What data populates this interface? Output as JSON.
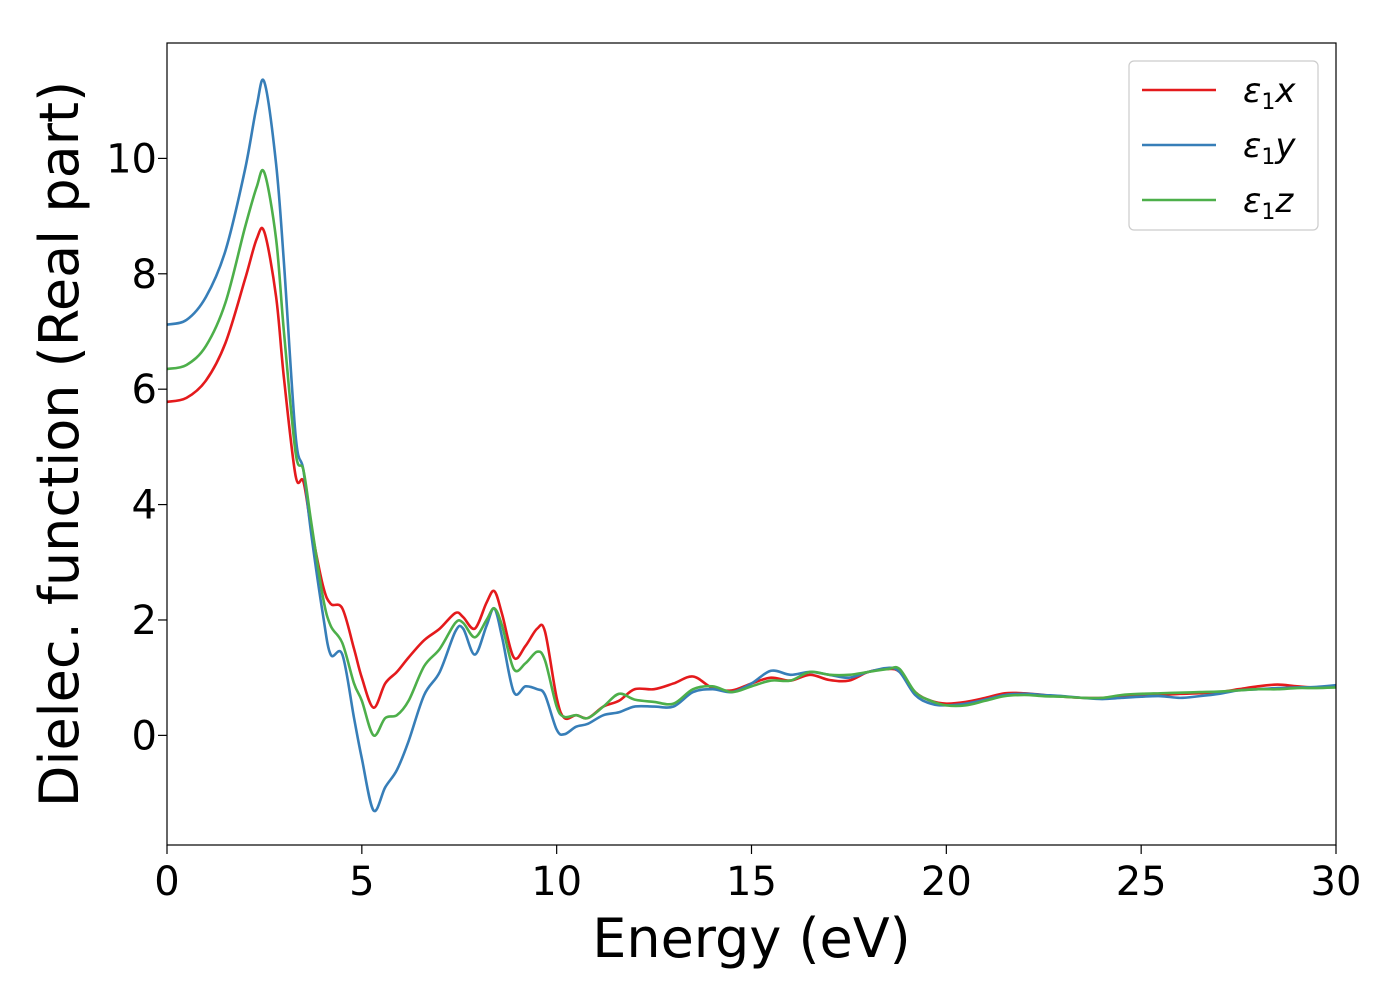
{
  "chart_data": {
    "type": "line",
    "title": "",
    "xlabel": "Energy (eV)",
    "ylabel": "Dielec. function (Real part)",
    "xlim": [
      0,
      30
    ],
    "ylim": [
      -1.9,
      12.0
    ],
    "xticks": [
      0,
      5,
      10,
      15,
      20,
      25,
      30
    ],
    "xtick_labels": [
      "0",
      "5",
      "10",
      "15",
      "20",
      "25",
      "30"
    ],
    "yticks": [
      0,
      2,
      4,
      6,
      8,
      10
    ],
    "ytick_labels": [
      "0",
      "2",
      "4",
      "6",
      "8",
      "10"
    ],
    "grid": false,
    "legend_position": "top-right",
    "series": [
      {
        "name": "ε1x",
        "name_base": "ε",
        "name_sub": "1",
        "name_tail": "x",
        "color": "#e41a1c",
        "x": [
          0,
          0.5,
          1.0,
          1.5,
          2.0,
          2.3,
          2.5,
          2.8,
          3.0,
          3.3,
          3.5,
          3.7,
          4.0,
          4.2,
          4.5,
          4.8,
          5.0,
          5.3,
          5.6,
          5.9,
          6.2,
          6.6,
          7.0,
          7.4,
          7.6,
          7.9,
          8.2,
          8.4,
          8.6,
          8.9,
          9.2,
          9.5,
          9.7,
          10.0,
          10.2,
          10.5,
          10.8,
          11.2,
          11.6,
          12.0,
          12.5,
          13.0,
          13.5,
          14.0,
          14.5,
          15.0,
          15.5,
          16.0,
          16.5,
          17.0,
          17.5,
          18.0,
          18.5,
          18.8,
          19.2,
          19.6,
          20.0,
          20.5,
          21.0,
          21.5,
          22.0,
          22.5,
          23.0,
          23.5,
          24.0,
          24.5,
          25.0,
          25.5,
          26.0,
          26.5,
          27.0,
          27.5,
          28.0,
          28.5,
          29.0,
          29.5,
          30.0
        ],
        "y": [
          5.78,
          5.85,
          6.15,
          6.8,
          7.9,
          8.6,
          8.72,
          7.6,
          6.2,
          4.5,
          4.4,
          3.6,
          2.6,
          2.28,
          2.2,
          1.5,
          1.0,
          0.48,
          0.9,
          1.1,
          1.35,
          1.65,
          1.85,
          2.12,
          2.05,
          1.85,
          2.3,
          2.5,
          2.1,
          1.35,
          1.55,
          1.85,
          1.8,
          0.65,
          0.3,
          0.35,
          0.3,
          0.5,
          0.6,
          0.8,
          0.8,
          0.9,
          1.02,
          0.82,
          0.78,
          0.9,
          1.0,
          0.95,
          1.05,
          0.96,
          0.95,
          1.1,
          1.15,
          1.1,
          0.75,
          0.6,
          0.55,
          0.58,
          0.65,
          0.73,
          0.73,
          0.7,
          0.67,
          0.65,
          0.65,
          0.68,
          0.7,
          0.7,
          0.72,
          0.73,
          0.75,
          0.8,
          0.85,
          0.88,
          0.85,
          0.83,
          0.85
        ]
      },
      {
        "name": "ε1y",
        "name_base": "ε",
        "name_sub": "1",
        "name_tail": "y",
        "color": "#377eb8",
        "x": [
          0,
          0.5,
          1.0,
          1.5,
          2.0,
          2.3,
          2.5,
          2.8,
          3.0,
          3.3,
          3.5,
          3.7,
          4.0,
          4.2,
          4.5,
          4.8,
          5.0,
          5.3,
          5.6,
          5.9,
          6.2,
          6.6,
          7.0,
          7.4,
          7.6,
          7.9,
          8.2,
          8.4,
          8.6,
          8.9,
          9.2,
          9.5,
          9.7,
          10.0,
          10.2,
          10.5,
          10.8,
          11.2,
          11.6,
          12.0,
          12.5,
          13.0,
          13.5,
          14.0,
          14.5,
          15.0,
          15.5,
          16.0,
          16.5,
          17.0,
          17.5,
          18.0,
          18.5,
          18.8,
          19.2,
          19.6,
          20.0,
          20.5,
          21.0,
          21.5,
          22.0,
          22.5,
          23.0,
          23.5,
          24.0,
          24.5,
          25.0,
          25.5,
          26.0,
          26.5,
          27.0,
          27.5,
          28.0,
          28.5,
          29.0,
          29.5,
          30.0
        ],
        "y": [
          7.12,
          7.2,
          7.6,
          8.4,
          9.8,
          10.9,
          11.32,
          9.9,
          8.2,
          5.2,
          4.6,
          3.5,
          2.1,
          1.4,
          1.4,
          0.3,
          -0.4,
          -1.3,
          -0.9,
          -0.6,
          -0.1,
          0.7,
          1.1,
          1.8,
          1.85,
          1.4,
          1.9,
          2.2,
          1.7,
          0.75,
          0.85,
          0.8,
          0.7,
          0.1,
          0.02,
          0.15,
          0.2,
          0.35,
          0.4,
          0.5,
          0.5,
          0.5,
          0.75,
          0.8,
          0.75,
          0.9,
          1.12,
          1.05,
          1.1,
          1.05,
          1.0,
          1.1,
          1.17,
          1.1,
          0.7,
          0.55,
          0.52,
          0.55,
          0.62,
          0.7,
          0.72,
          0.7,
          0.68,
          0.65,
          0.63,
          0.65,
          0.67,
          0.68,
          0.65,
          0.68,
          0.72,
          0.78,
          0.8,
          0.82,
          0.83,
          0.84,
          0.87
        ]
      },
      {
        "name": "ε1z",
        "name_base": "ε",
        "name_sub": "1",
        "name_tail": "z",
        "color": "#4daf4a",
        "x": [
          0,
          0.5,
          1.0,
          1.5,
          2.0,
          2.3,
          2.5,
          2.8,
          3.0,
          3.3,
          3.5,
          3.7,
          4.0,
          4.2,
          4.5,
          4.8,
          5.0,
          5.3,
          5.6,
          5.9,
          6.2,
          6.6,
          7.0,
          7.4,
          7.6,
          7.9,
          8.2,
          8.4,
          8.6,
          8.9,
          9.2,
          9.5,
          9.7,
          10.0,
          10.2,
          10.5,
          10.8,
          11.2,
          11.6,
          12.0,
          12.5,
          13.0,
          13.5,
          14.0,
          14.5,
          15.0,
          15.5,
          16.0,
          16.5,
          17.0,
          17.5,
          18.0,
          18.5,
          18.8,
          19.2,
          19.6,
          20.0,
          20.5,
          21.0,
          21.5,
          22.0,
          22.5,
          23.0,
          23.5,
          24.0,
          24.5,
          25.0,
          25.5,
          26.0,
          26.5,
          27.0,
          27.5,
          28.0,
          28.5,
          29.0,
          29.5,
          30.0
        ],
        "y": [
          6.35,
          6.42,
          6.75,
          7.5,
          8.8,
          9.5,
          9.75,
          8.6,
          7.0,
          4.9,
          4.6,
          3.7,
          2.4,
          1.9,
          1.6,
          0.9,
          0.6,
          0.0,
          0.3,
          0.35,
          0.6,
          1.2,
          1.5,
          1.95,
          1.95,
          1.7,
          2.0,
          2.2,
          1.9,
          1.15,
          1.25,
          1.45,
          1.3,
          0.5,
          0.32,
          0.35,
          0.3,
          0.5,
          0.72,
          0.62,
          0.58,
          0.55,
          0.8,
          0.85,
          0.75,
          0.85,
          0.95,
          0.95,
          1.1,
          1.05,
          1.05,
          1.1,
          1.15,
          1.15,
          0.75,
          0.6,
          0.52,
          0.52,
          0.6,
          0.68,
          0.7,
          0.68,
          0.67,
          0.65,
          0.65,
          0.7,
          0.72,
          0.73,
          0.74,
          0.75,
          0.76,
          0.78,
          0.8,
          0.8,
          0.82,
          0.82,
          0.83
        ]
      }
    ]
  }
}
